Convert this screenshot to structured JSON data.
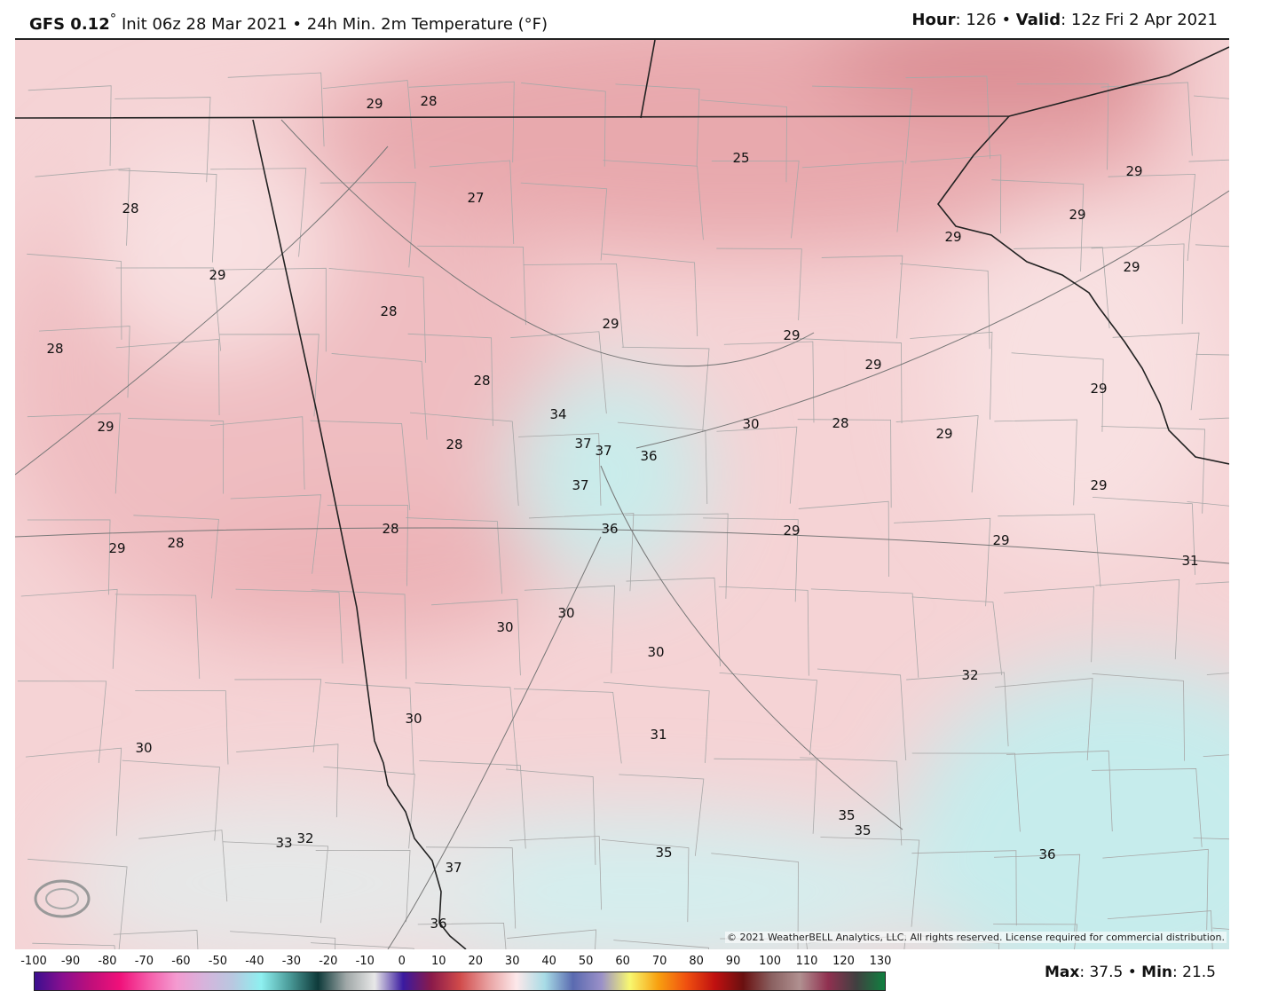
{
  "header": {
    "model": "GFS 0.12",
    "degree": "°",
    "init": "Init 06z 28 Mar 2021",
    "bullet": "•",
    "product": "24h Min. 2m Temperature (°F)",
    "hour_label": "Hour",
    "hour_value": ": 126",
    "valid_label": "Valid",
    "valid_value": ": 12z Fri 2 Apr 2021"
  },
  "map": {
    "unit": "°F",
    "labels": [
      "29",
      "28",
      "25",
      "27",
      "28",
      "29",
      "28",
      "29",
      "29",
      "29",
      "28",
      "28",
      "34",
      "30",
      "28",
      "29",
      "29",
      "37",
      "37",
      "36",
      "28",
      "37",
      "36",
      "29",
      "28",
      "29",
      "28",
      "29",
      "31",
      "30",
      "30",
      "30",
      "32",
      "30",
      "31",
      "30",
      "35",
      "35",
      "33",
      "32",
      "37",
      "35",
      "36",
      "36",
      "29",
      "29",
      "29",
      "29",
      "29",
      "29"
    ],
    "colors": {
      "cold_pink": "#e9a9ad",
      "pink": "#f4cdcf",
      "light_pink": "#f8dfe0",
      "cyan": "#c6ecec",
      "border": "#222222",
      "county": "#a8a8a8"
    }
  },
  "copyright": "© 2021 WeatherBELL Analytics, LLC. All rights reserved. License required for commercial distribution.",
  "logo": "WEATHERBELL",
  "colorbar": {
    "ticks": [
      "-100",
      "-90",
      "-80",
      "-70",
      "-60",
      "-50",
      "-40",
      "-30",
      "-20",
      "-10",
      "0",
      "10",
      "20",
      "30",
      "40",
      "50",
      "60",
      "70",
      "80",
      "90",
      "100",
      "110",
      "120",
      "130"
    ],
    "stops": [
      "#3b0f8f",
      "#8a0f8f",
      "#c00f7a",
      "#f0107a",
      "#f55aa8",
      "#f49ad0",
      "#d6b4dc",
      "#b8c8e0",
      "#8ef0f0",
      "#4a9a98",
      "#0e3a3a",
      "#a0a8a8",
      "#e8e8e8",
      "#3a1aa0",
      "#8a1a4a",
      "#d04a4a",
      "#e8a0a0",
      "#fde8ea",
      "#a8dce6",
      "#5a6ab0",
      "#9a90c8",
      "#f8f870",
      "#f8a010",
      "#f05010",
      "#c01010",
      "#6a1010",
      "#8a6060",
      "#b09090",
      "#903050",
      "#404040",
      "#108040"
    ]
  },
  "stats": {
    "max_label": "Max",
    "max_value": ": 37.5",
    "sep": "•",
    "min_label": "Min",
    "min_value": ": 21.5"
  }
}
